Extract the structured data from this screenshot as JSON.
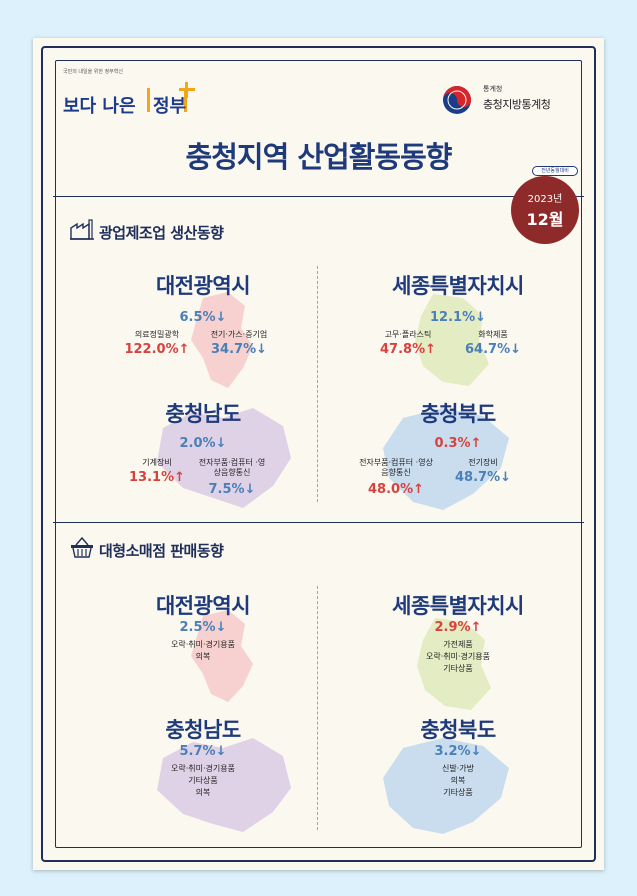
{
  "header": {
    "gov_tagline": "국민의 내일을 위한 정부혁신",
    "gov_logo_text_1": "보다 나은",
    "gov_logo_text_2": "정부",
    "agency_line1": "통계청",
    "agency_line2": "충청지방통계청"
  },
  "title": "충청지역 산업활동동향",
  "small_badge": "전년동월대비",
  "period": {
    "year": "2023년",
    "month": "12월"
  },
  "colors": {
    "navy": "#1e3a7b",
    "increase": "#d8423e",
    "decrease": "#4a7fb8",
    "month_badge": "#8f2a2a",
    "daejeon_map": "#f4c4c4",
    "sejong_map": "#dde9b6",
    "chungnam_map": "#d9c8e4",
    "chungbuk_map": "#bfd8ee"
  },
  "sections": [
    {
      "title": "광업제조업 생산동향",
      "icon": "factory-icon",
      "regions": [
        {
          "name": "대전광역시",
          "total": "6.5%↓",
          "total_dir": "down",
          "items": [
            {
              "label": "의료정밀광학",
              "value": "122.0%↑",
              "dir": "up"
            },
            {
              "label": "전기·가스·증기업",
              "value": "34.7%↓",
              "dir": "down"
            }
          ]
        },
        {
          "name": "세종특별자치시",
          "total": "12.1%↓",
          "total_dir": "down",
          "items": [
            {
              "label": "고무·플라스틱",
              "value": "47.8%↑",
              "dir": "up"
            },
            {
              "label": "화학제품",
              "value": "64.7%↓",
              "dir": "down"
            }
          ]
        },
        {
          "name": "충청남도",
          "total": "2.0%↓",
          "total_dir": "down",
          "items": [
            {
              "label": "기계장비",
              "value": "13.1%↑",
              "dir": "up"
            },
            {
              "label": "전자부품·컴퓨터 ·영상음향통신",
              "value": "7.5%↓",
              "dir": "down"
            }
          ]
        },
        {
          "name": "충청북도",
          "total": "0.3%↑",
          "total_dir": "up",
          "items": [
            {
              "label": "전자부품·컴퓨터 ·영상음향통신",
              "value": "48.0%↑",
              "dir": "up"
            },
            {
              "label": "전기장비",
              "value": "48.7%↓",
              "dir": "down"
            }
          ]
        }
      ]
    },
    {
      "title": "대형소매점 판매동향",
      "icon": "shopping-basket-icon",
      "regions": [
        {
          "name": "대전광역시",
          "total": "2.5%↓",
          "total_dir": "down",
          "lines": [
            "오락·취미·경기용품",
            "의복"
          ]
        },
        {
          "name": "세종특별자치시",
          "total": "2.9%↑",
          "total_dir": "up",
          "lines": [
            "가전제품",
            "오락·취미·경기용품",
            "기타상품"
          ]
        },
        {
          "name": "충청남도",
          "total": "5.7%↓",
          "total_dir": "down",
          "lines": [
            "오락·취미·경기용품",
            "기타상품",
            "의복"
          ]
        },
        {
          "name": "충청북도",
          "total": "3.2%↓",
          "total_dir": "down",
          "lines": [
            "신발·가방",
            "의복",
            "기타상품"
          ]
        }
      ]
    }
  ]
}
